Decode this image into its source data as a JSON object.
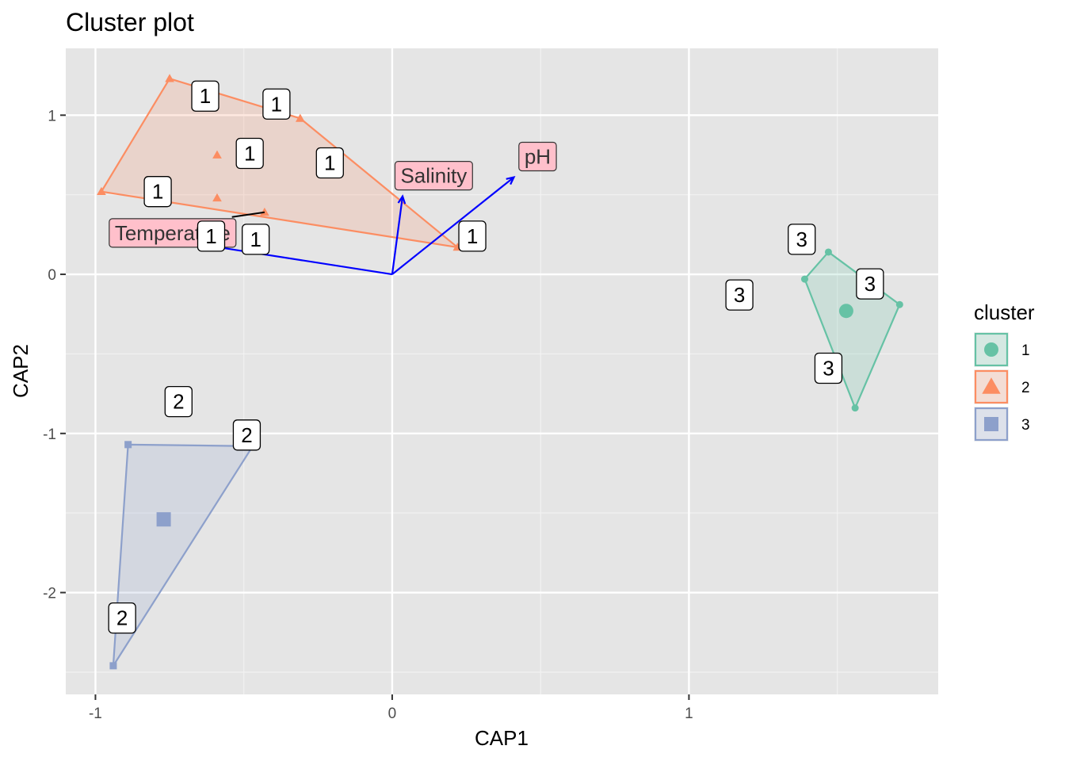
{
  "chart_data": {
    "type": "scatter",
    "title": "Cluster plot",
    "xlabel": "CAP1",
    "ylabel": "CAP2",
    "xlim": [
      -1.1,
      1.84
    ],
    "ylim": [
      -2.64,
      1.42
    ],
    "x_ticks": [
      -1,
      0,
      1
    ],
    "x_tick_labels": [
      "-1",
      "0",
      "1"
    ],
    "y_ticks": [
      -2,
      -1,
      0,
      1
    ],
    "y_tick_labels": [
      "-2",
      "-1",
      "0",
      "1"
    ],
    "grid": true,
    "legend": {
      "title": "cluster",
      "position": "right",
      "entries": [
        {
          "label": "1",
          "color": "#66c2a5",
          "shape": "circle"
        },
        {
          "label": "2",
          "color": "#fc8d62",
          "shape": "triangle"
        },
        {
          "label": "3",
          "color": "#8da0cb",
          "shape": "square"
        }
      ]
    },
    "series": [
      {
        "name": "1",
        "color": "#66c2a5",
        "shape": "circle",
        "points": [
          [
            1.39,
            -0.03
          ],
          [
            1.47,
            0.14
          ],
          [
            1.71,
            -0.19
          ],
          [
            1.56,
            -0.84
          ]
        ],
        "hull": [
          [
            1.39,
            -0.03
          ],
          [
            1.47,
            0.14
          ],
          [
            1.71,
            -0.19
          ],
          [
            1.56,
            -0.84
          ]
        ],
        "centroid": [
          1.53,
          -0.23
        ]
      },
      {
        "name": "2",
        "color": "#fc8d62",
        "shape": "triangle",
        "points": [
          [
            -0.75,
            1.23
          ],
          [
            -0.31,
            0.98
          ],
          [
            -0.59,
            0.75
          ],
          [
            -0.98,
            0.52
          ],
          [
            -0.59,
            0.48
          ],
          [
            -0.43,
            0.39
          ],
          [
            0.22,
            0.17
          ]
        ],
        "hull": [
          [
            -0.75,
            1.23
          ],
          [
            -0.31,
            0.98
          ],
          [
            0.22,
            0.17
          ],
          [
            -0.98,
            0.52
          ]
        ],
        "centroid": null
      },
      {
        "name": "3",
        "color": "#8da0cb",
        "shape": "square",
        "points": [
          [
            -0.89,
            -1.07
          ],
          [
            -0.47,
            -1.08
          ],
          [
            -0.94,
            -2.46
          ]
        ],
        "hull": [
          [
            -0.89,
            -1.07
          ],
          [
            -0.47,
            -1.08
          ],
          [
            -0.94,
            -2.46
          ]
        ],
        "centroid": [
          -0.77,
          -1.54
        ]
      }
    ],
    "point_labels": [
      {
        "text": "1",
        "x": -0.63,
        "y": 1.12
      },
      {
        "text": "1",
        "x": -0.39,
        "y": 1.07
      },
      {
        "text": "1",
        "x": -0.48,
        "y": 0.76
      },
      {
        "text": "1",
        "x": -0.21,
        "y": 0.7
      },
      {
        "text": "1",
        "x": -0.79,
        "y": 0.52
      },
      {
        "text": "1",
        "x": -0.61,
        "y": 0.24
      },
      {
        "text": "1",
        "x": -0.46,
        "y": 0.22
      },
      {
        "text": "1",
        "x": 0.27,
        "y": 0.24
      },
      {
        "text": "2",
        "x": -0.72,
        "y": -0.8
      },
      {
        "text": "2",
        "x": -0.49,
        "y": -1.01
      },
      {
        "text": "2",
        "x": -0.91,
        "y": -2.16
      },
      {
        "text": "3",
        "x": 1.38,
        "y": 0.22
      },
      {
        "text": "3",
        "x": 1.17,
        "y": -0.13
      },
      {
        "text": "3",
        "x": 1.61,
        "y": -0.06
      },
      {
        "text": "3",
        "x": 1.47,
        "y": -0.59
      }
    ],
    "leader_lines": [
      {
        "from": [
          -0.43,
          0.39
        ],
        "to": [
          -0.54,
          0.36
        ]
      }
    ],
    "arrows": [
      {
        "label": "Salinity",
        "x": 0.035,
        "y": 0.49,
        "label_x": 0.14,
        "label_y": 0.62
      },
      {
        "label": "pH",
        "x": 0.41,
        "y": 0.61,
        "label_x": 0.49,
        "label_y": 0.74
      },
      {
        "label": "Temperature",
        "x": -0.93,
        "y": 0.27,
        "label_x": -0.74,
        "label_y": 0.26
      }
    ],
    "arrow_color": "#0000ff"
  }
}
